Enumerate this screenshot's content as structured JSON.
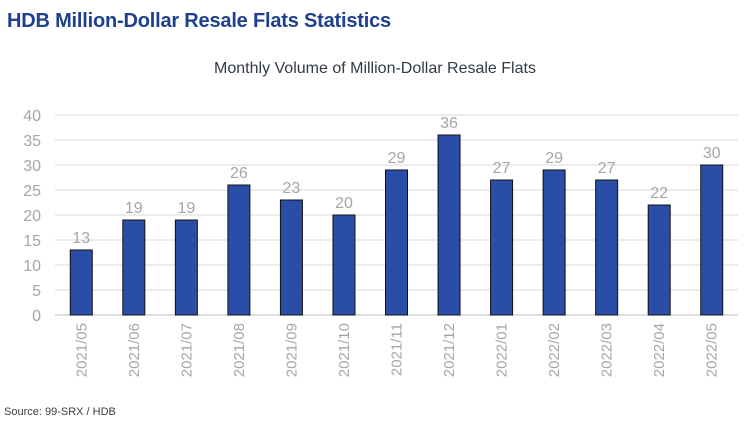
{
  "header": {
    "title": "HDB Million-Dollar Resale Flats Statistics"
  },
  "footer": {
    "source": "Source: 99-SRX / HDB"
  },
  "chart_data": {
    "type": "bar",
    "title": "Monthly Volume of Million-Dollar Resale Flats",
    "xlabel": "",
    "ylabel": "",
    "categories": [
      "2021/05",
      "2021/06",
      "2021/07",
      "2021/08",
      "2021/09",
      "2021/10",
      "2021/11",
      "2021/12",
      "2022/01",
      "2022/02",
      "2022/03",
      "2022/04",
      "2022/05"
    ],
    "values": [
      13,
      19,
      19,
      26,
      23,
      20,
      29,
      36,
      27,
      29,
      27,
      22,
      30
    ],
    "ylim": [
      0,
      40
    ],
    "yticks": [
      0,
      5,
      10,
      15,
      20,
      25,
      30,
      35,
      40
    ],
    "grid": true,
    "legend": "none",
    "data_labels": true,
    "bar_color": "#2a4ea8",
    "bar_outline_color": "#111111",
    "title_color": "#1f3f8f"
  }
}
